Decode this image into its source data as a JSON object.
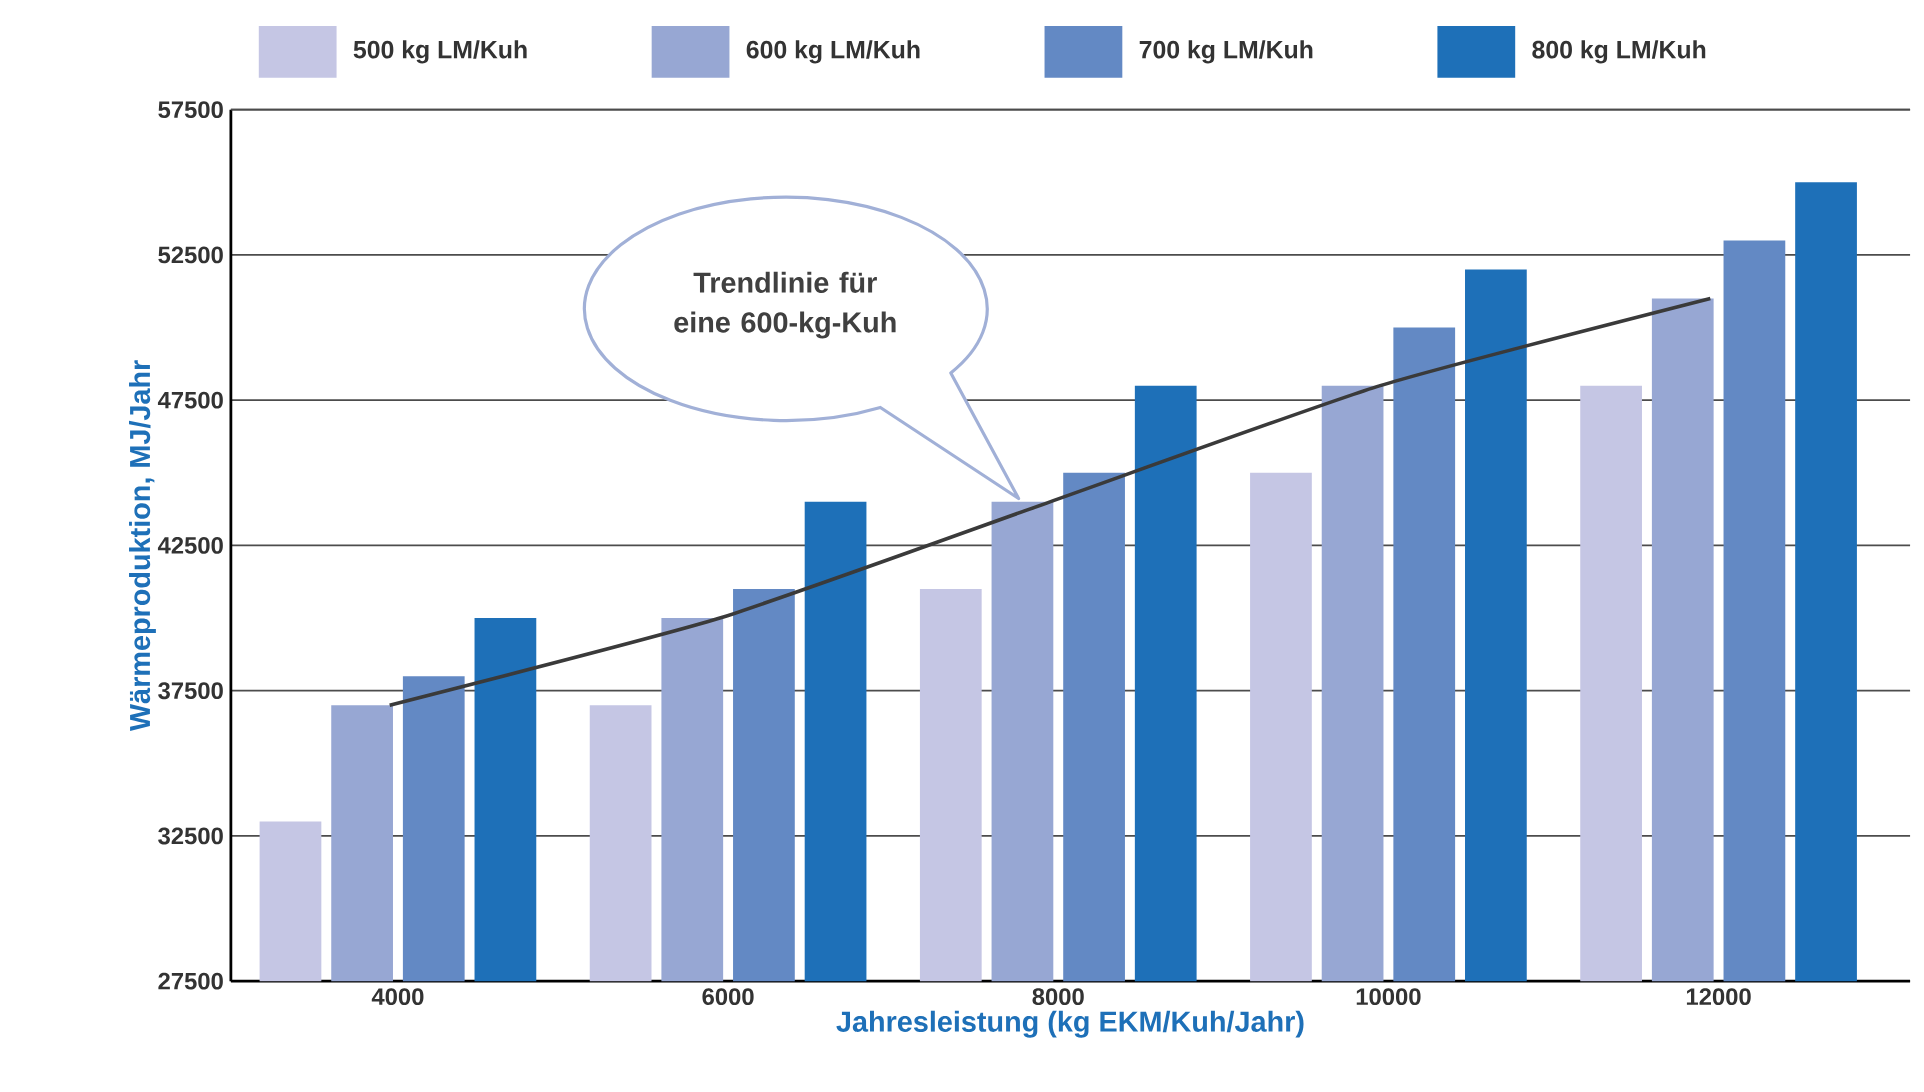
{
  "chart_data": {
    "type": "bar",
    "xlabel": "Jahresleistung (kg EKM/Kuh/Jahr)",
    "ylabel": "Wärmeproduktion, MJ/Jahr",
    "categories": [
      "4000",
      "6000",
      "8000",
      "10000",
      "12000"
    ],
    "series": [
      {
        "name": "500 kg LM/Kuh",
        "color": "#c5c6e4",
        "values": [
          33000,
          37000,
          41000,
          45000,
          48000
        ]
      },
      {
        "name": "600 kg LM/Kuh",
        "color": "#97a7d3",
        "values": [
          37000,
          40000,
          44000,
          48000,
          51000
        ]
      },
      {
        "name": "700 kg LM/Kuh",
        "color": "#6389c4",
        "values": [
          38000,
          41000,
          45000,
          50000,
          53000
        ]
      },
      {
        "name": "800 kg LM/Kuh",
        "color": "#1e70b8",
        "values": [
          40000,
          44000,
          48000,
          52000,
          55000
        ]
      },
      {
        "type": "line",
        "color": "#3a3a3a",
        "values": [
          37000,
          40000,
          44000,
          48000,
          51000
        ]
      }
    ],
    "ylim": [
      27500,
      57500
    ],
    "yticks": [
      27500,
      32500,
      37500,
      42500,
      47500,
      52500,
      57500
    ],
    "grid": "y",
    "legend": "top",
    "annotations": [
      "Trendlinie für eine 600-kg-Kuh"
    ]
  }
}
